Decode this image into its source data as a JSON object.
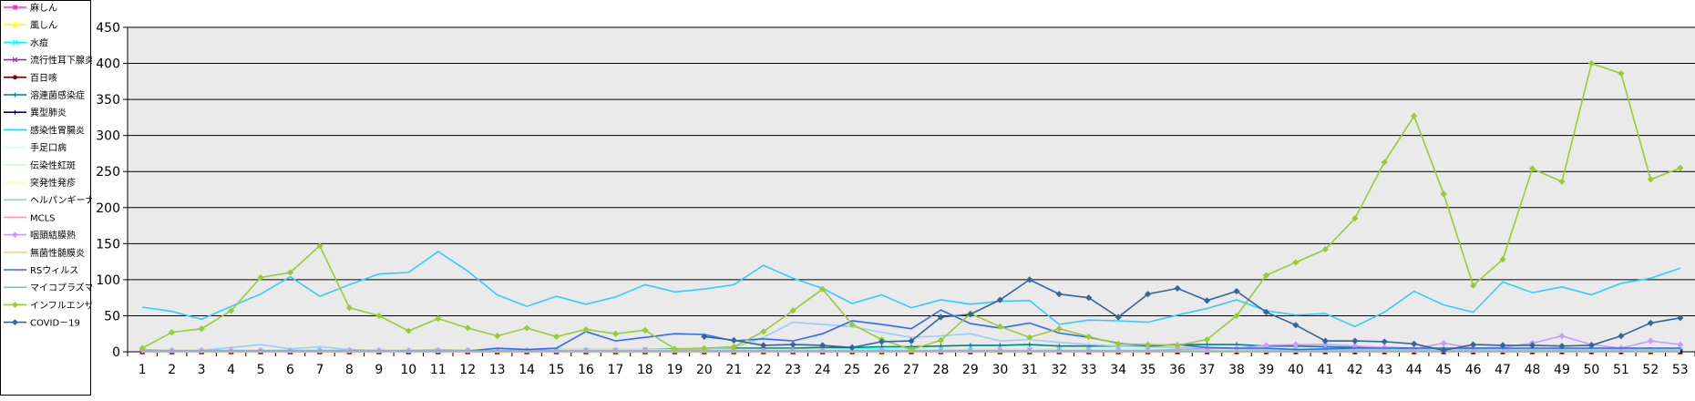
{
  "chart_data": {
    "type": "line",
    "title": "",
    "xlabel": "",
    "ylabel": "",
    "ylim": [
      0,
      450
    ],
    "yticks": [
      0,
      50,
      100,
      150,
      200,
      250,
      300,
      350,
      400,
      450
    ],
    "grid": true,
    "legend_position": "left",
    "x": [
      1,
      2,
      3,
      4,
      5,
      6,
      7,
      8,
      9,
      10,
      11,
      12,
      13,
      14,
      15,
      16,
      17,
      18,
      19,
      20,
      21,
      22,
      23,
      24,
      25,
      26,
      27,
      28,
      29,
      30,
      31,
      32,
      33,
      34,
      35,
      36,
      37,
      38,
      39,
      40,
      41,
      42,
      43,
      44,
      45,
      46,
      47,
      48,
      49,
      50,
      51,
      52,
      53
    ],
    "series": [
      {
        "name": "麻しん",
        "color": "#ff33cc",
        "marker": "square",
        "values": [
          0,
          0,
          0,
          0,
          0,
          0,
          0,
          0,
          0,
          0,
          0,
          0,
          0,
          0,
          0,
          0,
          0,
          0,
          0,
          0,
          0,
          0,
          0,
          0,
          0,
          0,
          0,
          0,
          0,
          0,
          0,
          0,
          0,
          0,
          0,
          0,
          0,
          0,
          0,
          0,
          0,
          0,
          0,
          0,
          0,
          0,
          0,
          0,
          0,
          0,
          0,
          0,
          0
        ]
      },
      {
        "name": "風しん",
        "color": "#ffff00",
        "marker": "triangle",
        "values": [
          0,
          0,
          0,
          0,
          0,
          0,
          0,
          0,
          0,
          0,
          0,
          0,
          0,
          0,
          0,
          0,
          0,
          0,
          0,
          0,
          0,
          0,
          0,
          0,
          0,
          0,
          0,
          0,
          0,
          0,
          0,
          0,
          0,
          0,
          0,
          0,
          0,
          0,
          0,
          0,
          0,
          0,
          0,
          0,
          0,
          0,
          0,
          0,
          0,
          0,
          0,
          0,
          0
        ]
      },
      {
        "name": "水痘",
        "color": "#00ffff",
        "marker": "x",
        "values": [
          2,
          1,
          1,
          1,
          1,
          1,
          1,
          1,
          1,
          1,
          1,
          1,
          1,
          1,
          2,
          2,
          2,
          3,
          2,
          2,
          2,
          3,
          3,
          3,
          4,
          4,
          3,
          3,
          3,
          3,
          3,
          3,
          3,
          3,
          3,
          3,
          3,
          3,
          3,
          3,
          3,
          3,
          3,
          3,
          3,
          3,
          3,
          3,
          3,
          3,
          3,
          3,
          3
        ]
      },
      {
        "name": "流行性耳下腺炎",
        "color": "#993399",
        "marker": "x",
        "values": [
          0,
          0,
          0,
          0,
          0,
          0,
          0,
          0,
          0,
          0,
          0,
          0,
          0,
          0,
          0,
          0,
          0,
          0,
          0,
          0,
          0,
          0,
          0,
          0,
          0,
          0,
          0,
          0,
          0,
          0,
          0,
          0,
          0,
          0,
          0,
          0,
          0,
          0,
          0,
          0,
          0,
          0,
          0,
          0,
          0,
          0,
          0,
          0,
          0,
          0,
          0,
          0,
          0
        ]
      },
      {
        "name": "百日咳",
        "color": "#800000",
        "marker": "circle",
        "values": [
          0,
          0,
          0,
          0,
          0,
          0,
          0,
          0,
          0,
          0,
          0,
          0,
          0,
          0,
          0,
          0,
          0,
          0,
          0,
          0,
          0,
          0,
          0,
          0,
          0,
          0,
          0,
          0,
          0,
          0,
          0,
          0,
          0,
          0,
          0,
          0,
          0,
          0,
          0,
          0,
          0,
          0,
          0,
          0,
          0,
          0,
          0,
          0,
          0,
          0,
          0,
          0,
          0
        ]
      },
      {
        "name": "溶連菌感染症",
        "color": "#008080",
        "marker": "plus",
        "values": [
          1,
          1,
          1,
          1,
          1,
          1,
          1,
          1,
          1,
          1,
          1,
          1,
          2,
          2,
          3,
          3,
          3,
          3,
          4,
          4,
          5,
          5,
          5,
          6,
          6,
          7,
          7,
          8,
          9,
          9,
          10,
          8,
          8,
          8,
          8,
          10,
          10,
          10,
          8,
          8,
          7,
          6,
          6,
          5,
          4,
          3,
          3,
          3,
          3,
          3,
          3,
          3,
          3
        ]
      },
      {
        "name": "異型肺炎",
        "color": "#000080",
        "marker": "plus",
        "values": [
          0,
          0,
          0,
          0,
          0,
          0,
          0,
          0,
          0,
          0,
          0,
          0,
          0,
          0,
          0,
          0,
          0,
          0,
          0,
          0,
          0,
          0,
          0,
          0,
          0,
          0,
          0,
          0,
          0,
          0,
          0,
          0,
          0,
          0,
          0,
          0,
          0,
          0,
          0,
          0,
          0,
          0,
          0,
          0,
          0,
          0,
          0,
          0,
          0,
          0,
          0,
          0,
          0
        ]
      },
      {
        "name": "感染性胃腸炎",
        "color": "#33ccff",
        "marker": "none",
        "values": [
          62,
          56,
          45,
          63,
          80,
          104,
          77,
          93,
          108,
          110,
          139,
          112,
          79,
          63,
          77,
          66,
          76,
          93,
          83,
          87,
          93,
          120,
          102,
          88,
          67,
          79,
          61,
          72,
          66,
          70,
          71,
          38,
          44,
          43,
          41,
          51,
          60,
          72,
          57,
          51,
          53,
          35,
          55,
          84,
          65,
          55,
          97,
          82,
          90,
          79,
          95,
          102,
          116
        ]
      },
      {
        "name": "手足口病",
        "color": "#ccffff",
        "marker": "none",
        "values": [
          1,
          1,
          1,
          1,
          1,
          1,
          1,
          1,
          1,
          1,
          1,
          1,
          1,
          1,
          1,
          1,
          1,
          1,
          1,
          1,
          1,
          1,
          1,
          1,
          1,
          1,
          1,
          1,
          1,
          1,
          1,
          1,
          1,
          1,
          1,
          1,
          1,
          1,
          1,
          1,
          1,
          1,
          1,
          1,
          1,
          1,
          1,
          1,
          1,
          1,
          1,
          1,
          1
        ]
      },
      {
        "name": "伝染性紅斑",
        "color": "#ccffcc",
        "marker": "none",
        "values": [
          1,
          1,
          1,
          1,
          1,
          1,
          1,
          1,
          1,
          1,
          1,
          1,
          1,
          1,
          1,
          1,
          1,
          1,
          1,
          1,
          1,
          1,
          1,
          1,
          1,
          1,
          1,
          1,
          1,
          1,
          1,
          1,
          1,
          1,
          1,
          1,
          1,
          1,
          1,
          1,
          1,
          1,
          1,
          1,
          1,
          1,
          1,
          1,
          1,
          1,
          1,
          1,
          1
        ]
      },
      {
        "name": "突発性発疹",
        "color": "#ffff99",
        "marker": "none",
        "values": [
          3,
          3,
          3,
          3,
          3,
          3,
          3,
          3,
          3,
          3,
          3,
          3,
          3,
          3,
          3,
          3,
          3,
          3,
          3,
          3,
          3,
          3,
          3,
          3,
          3,
          3,
          3,
          3,
          3,
          3,
          3,
          3,
          3,
          3,
          3,
          3,
          3,
          3,
          3,
          3,
          3,
          3,
          3,
          3,
          3,
          3,
          3,
          3,
          3,
          3,
          3,
          3,
          3
        ]
      },
      {
        "name": "ヘルパンギーナ",
        "color": "#99ccff",
        "marker": "none",
        "values": [
          3,
          2,
          2,
          6,
          10,
          4,
          7,
          3,
          2,
          2,
          3,
          2,
          2,
          2,
          2,
          2,
          2,
          2,
          2,
          4,
          6,
          20,
          41,
          38,
          35,
          27,
          20,
          22,
          25,
          15,
          17,
          13,
          10,
          8,
          7,
          6,
          5,
          4,
          3,
          3,
          3,
          3,
          3,
          3,
          3,
          3,
          3,
          3,
          3,
          3,
          3,
          3,
          3
        ]
      },
      {
        "name": "MCLS",
        "color": "#ff99cc",
        "marker": "none",
        "values": [
          0,
          0,
          0,
          0,
          0,
          0,
          0,
          0,
          0,
          0,
          0,
          0,
          0,
          0,
          0,
          0,
          0,
          0,
          0,
          0,
          0,
          0,
          0,
          0,
          0,
          0,
          0,
          0,
          0,
          0,
          0,
          0,
          0,
          0,
          0,
          0,
          0,
          0,
          0,
          0,
          0,
          0,
          0,
          0,
          0,
          0,
          0,
          0,
          0,
          0,
          0,
          0,
          0
        ]
      },
      {
        "name": "咽頭結膜熱",
        "color": "#cc99ff",
        "marker": "diamond",
        "values": [
          2,
          2,
          2,
          2,
          2,
          2,
          2,
          2,
          2,
          2,
          2,
          2,
          2,
          2,
          2,
          2,
          2,
          2,
          2,
          2,
          2,
          2,
          2,
          2,
          2,
          2,
          2,
          2,
          2,
          2,
          2,
          2,
          2,
          2,
          2,
          3,
          4,
          5,
          9,
          10,
          10,
          8,
          6,
          4,
          12,
          5,
          6,
          12,
          22,
          10,
          5,
          15,
          10
        ]
      },
      {
        "name": "無菌性髄膜炎",
        "color": "#ffcc99",
        "marker": "none",
        "values": [
          0,
          0,
          0,
          0,
          0,
          0,
          0,
          0,
          0,
          0,
          0,
          0,
          0,
          0,
          0,
          0,
          0,
          0,
          0,
          0,
          0,
          0,
          0,
          0,
          0,
          0,
          0,
          0,
          0,
          0,
          0,
          0,
          0,
          0,
          0,
          0,
          0,
          0,
          0,
          0,
          0,
          0,
          0,
          0,
          0,
          0,
          0,
          0,
          0,
          0,
          0,
          0,
          0
        ]
      },
      {
        "name": "RSウィルス",
        "color": "#3366ff",
        "marker": "none",
        "values": [
          1,
          1,
          1,
          1,
          1,
          1,
          1,
          1,
          1,
          1,
          1,
          1,
          5,
          3,
          5,
          28,
          15,
          20,
          25,
          24,
          15,
          18,
          15,
          25,
          43,
          38,
          32,
          58,
          39,
          33,
          40,
          26,
          20,
          12,
          8,
          10,
          6,
          5,
          5,
          3,
          4,
          5,
          5,
          5,
          5,
          5,
          5,
          5,
          5,
          5,
          5,
          5,
          5
        ]
      },
      {
        "name": "マイコプラズマ肺炎",
        "color": "#66cccc",
        "marker": "none",
        "values": [
          1,
          1,
          1,
          1,
          1,
          1,
          1,
          1,
          1,
          1,
          1,
          1,
          1,
          1,
          1,
          1,
          1,
          1,
          1,
          1,
          1,
          1,
          1,
          1,
          1,
          1,
          1,
          1,
          1,
          1,
          1,
          1,
          1,
          1,
          1,
          1,
          1,
          1,
          1,
          1,
          1,
          1,
          1,
          1,
          1,
          1,
          1,
          1,
          1,
          1,
          1,
          1,
          1
        ]
      },
      {
        "name": "インフルエンザ",
        "color": "#99cc33",
        "marker": "diamond",
        "values": [
          5,
          27,
          32,
          57,
          103,
          110,
          147,
          61,
          50,
          29,
          46,
          33,
          22,
          33,
          21,
          31,
          25,
          30,
          4,
          5,
          7,
          28,
          57,
          87,
          38,
          17,
          3,
          16,
          53,
          35,
          20,
          32,
          21,
          11,
          10,
          9,
          17,
          50,
          106,
          124,
          142,
          185,
          263,
          327,
          219,
          92,
          128,
          254,
          236,
          400,
          386,
          239,
          255
        ]
      },
      {
        "name": "COVID－19",
        "color": "#336699",
        "marker": "diamond",
        "values": [
          null,
          null,
          null,
          null,
          null,
          null,
          null,
          null,
          null,
          null,
          null,
          null,
          null,
          null,
          null,
          null,
          null,
          null,
          null,
          21,
          16,
          9,
          10,
          9,
          6,
          14,
          15,
          48,
          52,
          72,
          100,
          80,
          75,
          48,
          80,
          88,
          71,
          84,
          55,
          37,
          15,
          15,
          14,
          11,
          2,
          10,
          9,
          9,
          8,
          9,
          22,
          40,
          47
        ]
      }
    ]
  }
}
